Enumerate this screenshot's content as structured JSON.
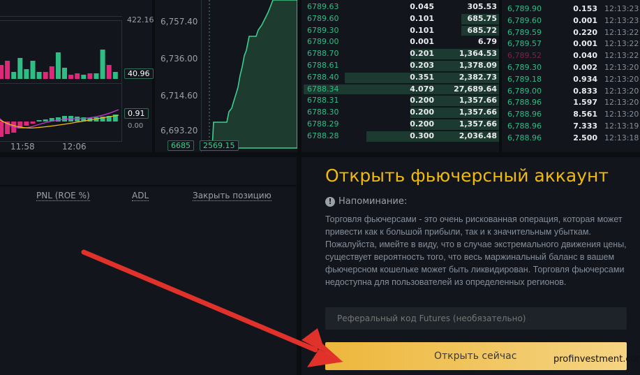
{
  "kline": {
    "volume_axis": "422.16",
    "volume_value": "40.96",
    "macd_value": "0.91",
    "macd_zero": "0.00",
    "times": [
      "11:58",
      "12:06"
    ],
    "volume_bars": [
      [
        "r",
        20
      ],
      [
        "r",
        26
      ],
      [
        "g",
        10
      ],
      [
        "g",
        30
      ],
      [
        "g",
        14
      ],
      [
        "g",
        26
      ],
      [
        "g",
        10
      ],
      [
        "r",
        10
      ],
      [
        "r",
        18
      ],
      [
        "g",
        38
      ],
      [
        "g",
        16
      ],
      [
        "r",
        6
      ],
      [
        "r",
        8
      ],
      [
        "g",
        6
      ],
      [
        "r",
        8
      ],
      [
        "g",
        8
      ],
      [
        "g",
        42
      ],
      [
        "r",
        20
      ],
      [
        "g",
        10
      ]
    ],
    "macd_bars": [
      -22,
      -18,
      -16,
      -10,
      -6,
      -3,
      2,
      3,
      5,
      6,
      8,
      8,
      7,
      6,
      5,
      6,
      7,
      8,
      10
    ]
  },
  "depth": {
    "ticks": [
      "6,757.40",
      "6,736.00",
      "6,714.60",
      "6,693.20"
    ],
    "price_tag": "6685",
    "value_tag": "2569.15"
  },
  "orderbook": [
    {
      "price": "6789.63",
      "qty": "0.045",
      "total": "305.53",
      "depth": 0
    },
    {
      "price": "6789.60",
      "qty": "0.101",
      "total": "685.75",
      "depth": 0.19
    },
    {
      "price": "6789.30",
      "qty": "0.101",
      "total": "685.72",
      "depth": 0.19
    },
    {
      "price": "6789.00",
      "qty": "0.001",
      "total": "6.79",
      "depth": 0
    },
    {
      "price": "6788.70",
      "qty": "0.201",
      "total": "1,364.53",
      "depth": 0.45
    },
    {
      "price": "6788.61",
      "qty": "0.203",
      "total": "1,378.09",
      "depth": 0.45
    },
    {
      "price": "6788.40",
      "qty": "0.351",
      "total": "2,382.73",
      "depth": 0.78
    },
    {
      "price": "6788.34",
      "qty": "4.079",
      "total": "27,689.64",
      "depth": 0.99
    },
    {
      "price": "6788.31",
      "qty": "0.200",
      "total": "1,357.66",
      "depth": 0.45
    },
    {
      "price": "6788.30",
      "qty": "0.200",
      "total": "1,357.66",
      "depth": 0.45
    },
    {
      "price": "6788.29",
      "qty": "0.200",
      "total": "1,357.66",
      "depth": 0.45
    },
    {
      "price": "6788.28",
      "qty": "0.300",
      "total": "2,036.48",
      "depth": 0.67
    }
  ],
  "trades": [
    {
      "price": "6,789.90",
      "qty": "0.153",
      "time": "12:13:23",
      "side": "buy"
    },
    {
      "price": "6,789.60",
      "qty": "0.001",
      "time": "12:13:23",
      "side": "buy"
    },
    {
      "price": "6,789.59",
      "qty": "0.220",
      "time": "12:13:22",
      "side": "buy"
    },
    {
      "price": "6,789.57",
      "qty": "0.001",
      "time": "12:13:22",
      "side": "buy"
    },
    {
      "price": "6,789.52",
      "qty": "0.040",
      "time": "12:13:22",
      "side": "sell"
    },
    {
      "price": "6,789.30",
      "qty": "0.002",
      "time": "12:13:20",
      "side": "buy"
    },
    {
      "price": "6,789.18",
      "qty": "0.934",
      "time": "12:13:20",
      "side": "buy"
    },
    {
      "price": "6,789.00",
      "qty": "0.833",
      "time": "12:13:20",
      "side": "buy"
    },
    {
      "price": "6,788.96",
      "qty": "1.597",
      "time": "12:13:20",
      "side": "buy"
    },
    {
      "price": "6,788.96",
      "qty": "8.561",
      "time": "12:13:20",
      "side": "buy"
    },
    {
      "price": "6,788.96",
      "qty": "7.333",
      "time": "12:13:19",
      "side": "buy"
    },
    {
      "price": "6,788.96",
      "qty": "2.500",
      "time": "12:13:18",
      "side": "buy"
    }
  ],
  "positions": {
    "columns": [
      "PNL (ROE %)",
      "ADL",
      "Закрыть позицию"
    ]
  },
  "open_account": {
    "title": "Открыть фьючерсный аккаунт",
    "reminder_label": "Напоминание:",
    "warning": "Торговля фьючерсами - это очень рискованная операция, которая может привести как к большой прибыли, так и к значительным убыткам. Пожалуйста, имейте в виду, что в случае экстремального движения цены, существует вероятность того, что весь маржинальный баланс в вашем фьючерсном кошельке может быть ликвидирован. Торговля фьючерсами недоступна для пользователей из определенных регионов.",
    "referral_placeholder": "Реферальный код Futures (необязательно)",
    "button": "Открыть сейчас"
  },
  "watermark": "profinvestment.com",
  "colors": {
    "buy": "#2ebd85",
    "sell": "#e0287a",
    "accent": "#f0b90b",
    "arrow": "#e0322a"
  }
}
